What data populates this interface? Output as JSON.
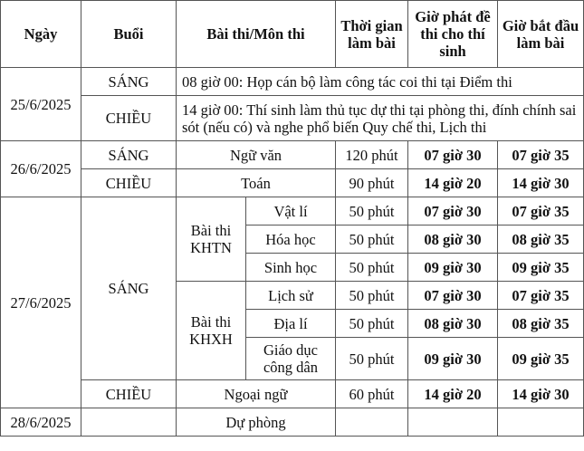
{
  "headers": {
    "date": "Ngày",
    "session": "Buổi",
    "subject": "Bài thi/Môn thi",
    "duration": "Thời gian làm bài",
    "distribute": "Giờ phát đề thi cho thí sinh",
    "start": "Giờ bắt đầu làm bài"
  },
  "d25": {
    "date": "25/6/2025",
    "morning": "SÁNG",
    "morning_note": "08 giờ 00: Họp cán bộ làm công tác coi thi tại Điểm thi",
    "afternoon": "CHIỀU",
    "afternoon_note": "14 giờ 00: Thí sinh làm thủ tục dự thi tại phòng thi, đính chính sai sót (nếu có) và nghe phổ biến Quy chế thi, Lịch thi"
  },
  "d26": {
    "date": "26/6/2025",
    "rows": [
      {
        "session": "SÁNG",
        "subject": "Ngữ văn",
        "duration": "120 phút",
        "distribute": "07 giờ 30",
        "start": "07 giờ 35"
      },
      {
        "session": "CHIỀU",
        "subject": "Toán",
        "duration": "90 phút",
        "distribute": "14 giờ 20",
        "start": "14 giờ 30"
      }
    ]
  },
  "d27": {
    "date": "27/6/2025",
    "morning": "SÁNG",
    "khtn": "Bài thi KHTN",
    "khxh": "Bài thi KHXH",
    "rows": [
      {
        "subject": "Vật lí",
        "duration": "50 phút",
        "distribute": "07 giờ 30",
        "start": "07 giờ 35"
      },
      {
        "subject": "Hóa học",
        "duration": "50 phút",
        "distribute": "08 giờ 30",
        "start": "08 giờ 35"
      },
      {
        "subject": "Sinh học",
        "duration": "50 phút",
        "distribute": "09 giờ 30",
        "start": "09 giờ 35"
      },
      {
        "subject": "Lịch sử",
        "duration": "50 phút",
        "distribute": "07 giờ 30",
        "start": "07 giờ 35"
      },
      {
        "subject": "Địa lí",
        "duration": "50 phút",
        "distribute": "08 giờ 30",
        "start": "08 giờ 35"
      },
      {
        "subject": "Giáo dục công dân",
        "duration": "50 phút",
        "distribute": "09 giờ 30",
        "start": "09 giờ 35"
      }
    ],
    "afternoon": {
      "session": "CHIỀU",
      "subject": "Ngoại ngữ",
      "duration": "60 phút",
      "distribute": "14 giờ 20",
      "start": "14 giờ 30"
    }
  },
  "d28": {
    "date": "28/6/2025",
    "subject": "Dự phòng"
  }
}
